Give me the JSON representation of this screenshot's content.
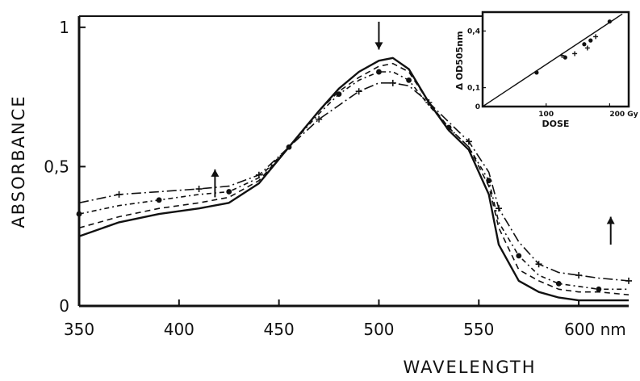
{
  "chart_data": [
    {
      "type": "line",
      "title": "",
      "xlabel": "WAVELENGTH",
      "ylabel": "ABSORBANCE",
      "x_unit": "nm",
      "xlim": [
        350,
        625
      ],
      "ylim": [
        0,
        1.04
      ],
      "x_ticks": [
        350,
        400,
        450,
        500,
        550,
        600
      ],
      "x_tick_labels": [
        "350",
        "400",
        "450",
        "500",
        "550",
        "600 nm"
      ],
      "y_ticks": [
        0,
        0.5,
        1
      ],
      "y_tick_labels": [
        "0",
        "0,5",
        "1"
      ],
      "grid": false,
      "legend": "none",
      "annotations": [
        {
          "type": "arrow",
          "direction": "up",
          "x": 418,
          "y_from": 0.39,
          "y_to": 0.49
        },
        {
          "type": "arrow",
          "direction": "down",
          "x": 500,
          "y_from": 1.02,
          "y_to": 0.92
        },
        {
          "type": "arrow",
          "direction": "up",
          "x": 616,
          "y_from": 0.22,
          "y_to": 0.32
        }
      ],
      "series": [
        {
          "style": "solid",
          "x": [
            350,
            370,
            390,
            410,
            425,
            440,
            455,
            470,
            480,
            490,
            500,
            507,
            515,
            525,
            535,
            545,
            555,
            560,
            570,
            580,
            590,
            600,
            610,
            625
          ],
          "values": [
            0.25,
            0.3,
            0.33,
            0.35,
            0.37,
            0.44,
            0.57,
            0.7,
            0.78,
            0.84,
            0.88,
            0.89,
            0.85,
            0.73,
            0.63,
            0.56,
            0.4,
            0.22,
            0.09,
            0.05,
            0.03,
            0.02,
            0.02,
            0.02
          ]
        },
        {
          "style": "dashed",
          "x": [
            350,
            370,
            390,
            410,
            425,
            440,
            455,
            470,
            480,
            490,
            500,
            507,
            515,
            525,
            535,
            545,
            555,
            560,
            570,
            580,
            590,
            600,
            610,
            625
          ],
          "values": [
            0.28,
            0.32,
            0.35,
            0.37,
            0.39,
            0.45,
            0.57,
            0.7,
            0.77,
            0.82,
            0.86,
            0.87,
            0.84,
            0.73,
            0.64,
            0.57,
            0.43,
            0.28,
            0.13,
            0.09,
            0.06,
            0.05,
            0.05,
            0.04
          ]
        },
        {
          "style": "dash-dot-circle-markers",
          "x": [
            350,
            370,
            390,
            410,
            425,
            440,
            455,
            470,
            480,
            490,
            500,
            507,
            515,
            525,
            535,
            545,
            555,
            560,
            570,
            580,
            590,
            600,
            610,
            625
          ],
          "values": [
            0.33,
            0.36,
            0.38,
            0.4,
            0.41,
            0.46,
            0.57,
            0.69,
            0.76,
            0.81,
            0.84,
            0.84,
            0.81,
            0.72,
            0.64,
            0.57,
            0.45,
            0.3,
            0.18,
            0.11,
            0.08,
            0.07,
            0.06,
            0.06
          ]
        },
        {
          "style": "long-dash-dot-plus-markers",
          "x": [
            350,
            370,
            390,
            410,
            425,
            440,
            455,
            470,
            480,
            490,
            500,
            507,
            515,
            525,
            535,
            545,
            555,
            560,
            570,
            580,
            590,
            600,
            610,
            625
          ],
          "values": [
            0.37,
            0.4,
            0.41,
            0.42,
            0.43,
            0.47,
            0.57,
            0.67,
            0.72,
            0.77,
            0.8,
            0.8,
            0.79,
            0.73,
            0.66,
            0.59,
            0.48,
            0.35,
            0.23,
            0.15,
            0.12,
            0.11,
            0.1,
            0.09
          ]
        }
      ]
    },
    {
      "type": "scatter",
      "title": "",
      "xlabel": "DOSE",
      "ylabel": "Δ OD505nm",
      "xlim": [
        0,
        230
      ],
      "ylim": [
        0,
        0.5
      ],
      "x_ticks": [
        100,
        200
      ],
      "x_tick_labels": [
        "100",
        "200 Gy"
      ],
      "y_ticks": [
        0,
        0.1,
        0.4
      ],
      "y_tick_labels": [
        "0",
        "0,1",
        "0,4"
      ],
      "grid": false,
      "legend": "none",
      "points": [
        {
          "x": 85,
          "y": 0.18
        },
        {
          "x": 125,
          "y": 0.27
        },
        {
          "x": 130,
          "y": 0.26
        },
        {
          "x": 145,
          "y": 0.28
        },
        {
          "x": 160,
          "y": 0.33
        },
        {
          "x": 165,
          "y": 0.31
        },
        {
          "x": 170,
          "y": 0.35
        },
        {
          "x": 178,
          "y": 0.37
        },
        {
          "x": 200,
          "y": 0.45
        }
      ],
      "fit_line": {
        "x": [
          0,
          220
        ],
        "y": [
          0,
          0.49
        ]
      }
    }
  ]
}
